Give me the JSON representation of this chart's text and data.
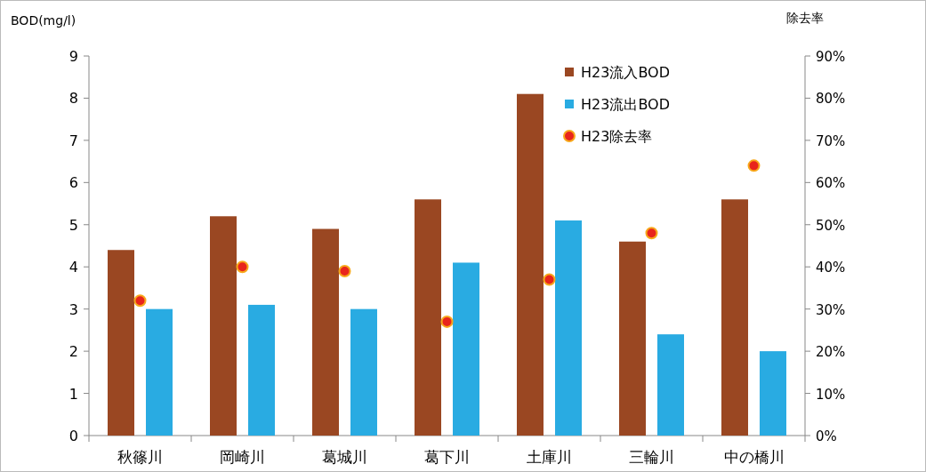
{
  "chart_data": {
    "type": "bar",
    "ylabel": "BOD(mg/l)",
    "y2label": "除去率",
    "categories": [
      "秋篠川",
      "岡崎川",
      "葛城川",
      "葛下川",
      "土庫川",
      "三輪川",
      "中の橋川"
    ],
    "series": [
      {
        "name": "H23流入BOD",
        "color": "#9a4722",
        "values": [
          4.4,
          5.2,
          4.9,
          5.6,
          8.1,
          4.6,
          5.6
        ]
      },
      {
        "name": "H23流出BOD",
        "color": "#29abe2",
        "values": [
          3.0,
          3.1,
          3.0,
          4.1,
          5.1,
          2.4,
          2.0
        ]
      },
      {
        "name": "H23除去率",
        "color": "#e8251c",
        "type": "scatter",
        "axis": "y2",
        "marker": "circle",
        "values": [
          32,
          40,
          39,
          27,
          37,
          48,
          64
        ]
      }
    ],
    "ylim": [
      0,
      9
    ],
    "yticks": [
      0,
      1,
      2,
      3,
      4,
      5,
      6,
      7,
      8,
      9
    ],
    "y2lim": [
      0,
      90
    ],
    "y2ticks": [
      {
        "value": 0,
        "label": "0%"
      },
      {
        "value": 10,
        "label": "10%"
      },
      {
        "value": 20,
        "label": "20%"
      },
      {
        "value": 30,
        "label": "30%"
      },
      {
        "value": 40,
        "label": "40%"
      },
      {
        "value": 50,
        "label": "50%"
      },
      {
        "value": 60,
        "label": "60%"
      },
      {
        "value": 70,
        "label": "70%"
      },
      {
        "value": 80,
        "label": "80%"
      },
      {
        "value": 90,
        "label": "90%"
      }
    ],
    "legend": "top right"
  }
}
